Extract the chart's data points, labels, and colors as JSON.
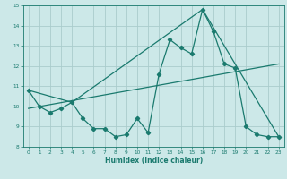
{
  "xlabel": "Humidex (Indice chaleur)",
  "xlim": [
    -0.5,
    23.5
  ],
  "ylim": [
    8,
    15
  ],
  "xticks": [
    0,
    1,
    2,
    3,
    4,
    5,
    6,
    7,
    8,
    9,
    10,
    11,
    12,
    13,
    14,
    15,
    16,
    17,
    18,
    19,
    20,
    21,
    22,
    23
  ],
  "yticks": [
    8,
    9,
    10,
    11,
    12,
    13,
    14,
    15
  ],
  "bg_color": "#cce8e8",
  "line_color": "#1a7a6e",
  "grid_color": "#aacccc",
  "line1_x": [
    0,
    1,
    2,
    3,
    4,
    5,
    6,
    7,
    8,
    9,
    10,
    11,
    12,
    13,
    14,
    15,
    16,
    17,
    18,
    19,
    20,
    21,
    22,
    23
  ],
  "line1_y": [
    10.8,
    10.0,
    9.7,
    9.9,
    10.2,
    9.4,
    8.9,
    8.9,
    8.5,
    8.6,
    9.4,
    8.7,
    11.6,
    13.3,
    12.9,
    12.6,
    14.8,
    13.7,
    12.1,
    11.9,
    9.0,
    8.6,
    8.5,
    8.5
  ],
  "line2_x": [
    0,
    4,
    16,
    23
  ],
  "line2_y": [
    10.8,
    10.2,
    14.8,
    8.5
  ],
  "line3_x": [
    0,
    23
  ],
  "line3_y": [
    9.9,
    12.1
  ]
}
